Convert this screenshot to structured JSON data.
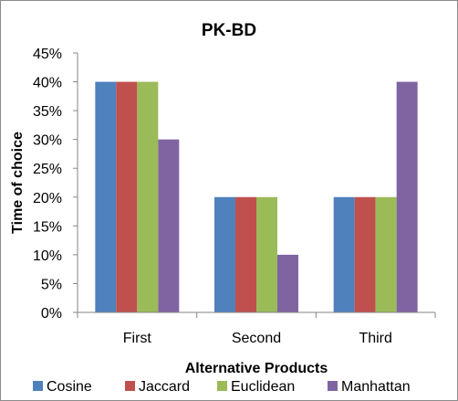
{
  "chart_data": {
    "type": "bar",
    "title": "PK-BD",
    "xlabel": "Alternative Products",
    "ylabel": "Time of choice",
    "categories": [
      "First",
      "Second",
      "Third"
    ],
    "ylim": [
      0,
      45
    ],
    "yticks": [
      "0%",
      "5%",
      "10%",
      "15%",
      "20%",
      "25%",
      "30%",
      "35%",
      "40%",
      "45%"
    ],
    "grid": false,
    "legend_position": "bottom",
    "series": [
      {
        "name": "Cosine",
        "color": "#4f81bd",
        "values": [
          40,
          20,
          20
        ]
      },
      {
        "name": "Jaccard",
        "color": "#c0504d",
        "values": [
          40,
          20,
          20
        ]
      },
      {
        "name": "Euclidean",
        "color": "#9bbb59",
        "values": [
          40,
          20,
          20
        ]
      },
      {
        "name": "Manhattan",
        "color": "#8064a2",
        "values": [
          30,
          10,
          40
        ]
      }
    ]
  }
}
